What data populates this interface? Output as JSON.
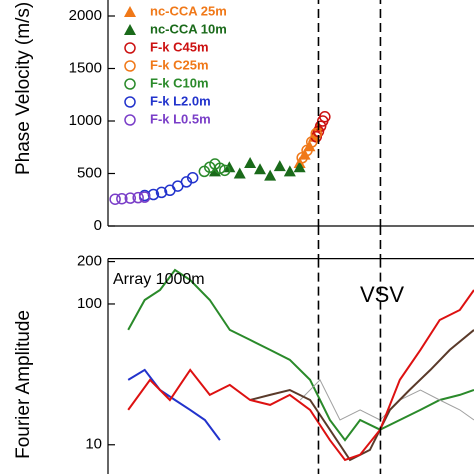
{
  "chart_data": [
    {
      "type": "scatter",
      "y_label": "Phase Velocity (m/s)",
      "xlim": [
        1,
        20
      ],
      "xlog": true,
      "ylim": [
        0,
        2200
      ],
      "yticks": [
        0,
        500,
        1000,
        1500,
        2000
      ],
      "vlines": [
        5.6,
        9.3
      ],
      "legend": "top-left",
      "series": [
        {
          "name": "nc-CCA 25m",
          "color": "#f07818",
          "marker": "triangle",
          "x": [
            4.8,
            5.0,
            5.2,
            5.4,
            5.58
          ],
          "values": [
            600,
            680,
            760,
            850,
            950
          ]
        },
        {
          "name": "nc-CCA 10m",
          "color": "#1a6a1a",
          "marker": "triangle",
          "x": [
            2.4,
            2.7,
            2.94,
            3.2,
            3.47,
            3.77,
            4.08,
            4.43,
            4.8
          ],
          "values": [
            520,
            560,
            500,
            600,
            540,
            480,
            570,
            520,
            560
          ]
        },
        {
          "name": "F-k C45m",
          "color": "#cc1111",
          "marker": "circle",
          "x": [
            5.5,
            5.6,
            5.7,
            5.8,
            5.9
          ],
          "values": [
            850,
            900,
            950,
            1000,
            1040
          ]
        },
        {
          "name": "F-k C25m",
          "color": "#f07818",
          "marker": "circle",
          "x": [
            4.9,
            5.1,
            5.3,
            5.5
          ],
          "values": [
            650,
            720,
            800,
            880
          ]
        },
        {
          "name": "F-k C10m",
          "color": "#2a8a2a",
          "marker": "circle",
          "x": [
            2.2,
            2.3,
            2.4,
            2.5,
            2.6
          ],
          "values": [
            520,
            560,
            590,
            550,
            530
          ]
        },
        {
          "name": "F-k L2.0m",
          "color": "#2233cc",
          "marker": "circle",
          "x": [
            1.35,
            1.45,
            1.55,
            1.66,
            1.77,
            1.9,
            2.0
          ],
          "values": [
            290,
            300,
            320,
            340,
            380,
            420,
            460
          ]
        },
        {
          "name": "F-k L0.5m",
          "color": "#7a3ec8",
          "marker": "circle",
          "x": [
            1.06,
            1.12,
            1.2,
            1.28,
            1.35
          ],
          "values": [
            255,
            260,
            265,
            270,
            275
          ]
        }
      ]
    },
    {
      "type": "line",
      "y_label": "Fourier Amplitude",
      "annotations": [
        "Array 1000m",
        "VSV"
      ],
      "xlim": [
        1,
        20
      ],
      "xlog": true,
      "ylim": [
        6.2,
        210
      ],
      "ylog": true,
      "yticks": [
        10,
        100,
        200
      ],
      "vlines": [
        5.6,
        9.3
      ],
      "series": [
        {
          "color": "#2a8a2a",
          "x": [
            1.18,
            1.35,
            1.53,
            1.73,
            1.96,
            2.3,
            2.71,
            3.2,
            3.77,
            4.43,
            5.23,
            6.15,
            6.96,
            7.87,
            9.27,
            10.9,
            12.9,
            15.1,
            17.8,
            20
          ],
          "values": [
            65.4,
            106.7,
            125.7,
            174.2,
            148,
            106.7,
            65.4,
            55.6,
            47.2,
            40.1,
            28.9,
            15.0,
            10.8,
            15.0,
            12.8,
            15.0,
            17.7,
            20.8,
            22.6,
            24.5
          ]
        },
        {
          "color": "#2233cc",
          "x": [
            1.18,
            1.35,
            1.53,
            1.73,
            1.96,
            2.21,
            2.5
          ],
          "values": [
            28.9,
            34.0,
            24.5,
            20.8,
            17.7,
            15.0,
            10.8
          ]
        },
        {
          "color": "#a0a0a0",
          "x": [
            4.82,
            5.67,
            6.68,
            7.87,
            9.27,
            10.9,
            12.9,
            15.1,
            17.8,
            20
          ],
          "values": [
            20.8,
            28.9,
            15.0,
            17.7,
            15.0,
            20.8,
            24.5,
            20.8,
            17.7,
            15.0
          ]
        },
        {
          "color": "#5a3a2a",
          "x": [
            3.2,
            3.77,
            4.43,
            5.23,
            6.15,
            7.25,
            8.53,
            10.05,
            11.8,
            14.0,
            16.4,
            20
          ],
          "values": [
            20.8,
            22.6,
            24.5,
            20.8,
            12.8,
            7.8,
            9.2,
            17.7,
            24.5,
            34.0,
            47.2,
            65.4
          ]
        },
        {
          "color": "#dd1111",
          "x": [
            1.18,
            1.41,
            1.66,
            1.96,
            2.3,
            2.71,
            3.2,
            3.77,
            4.43,
            5.23,
            6.15,
            6.96,
            7.87,
            9.27,
            10.9,
            12.9,
            15.1,
            17.8,
            20
          ],
          "values": [
            17.7,
            28.9,
            20.8,
            34.0,
            22.6,
            26.6,
            20.8,
            19.2,
            22.6,
            17.7,
            10.8,
            7.8,
            8.5,
            12.8,
            28.9,
            47.2,
            77.0,
            90.6,
            125.7
          ]
        }
      ]
    }
  ]
}
